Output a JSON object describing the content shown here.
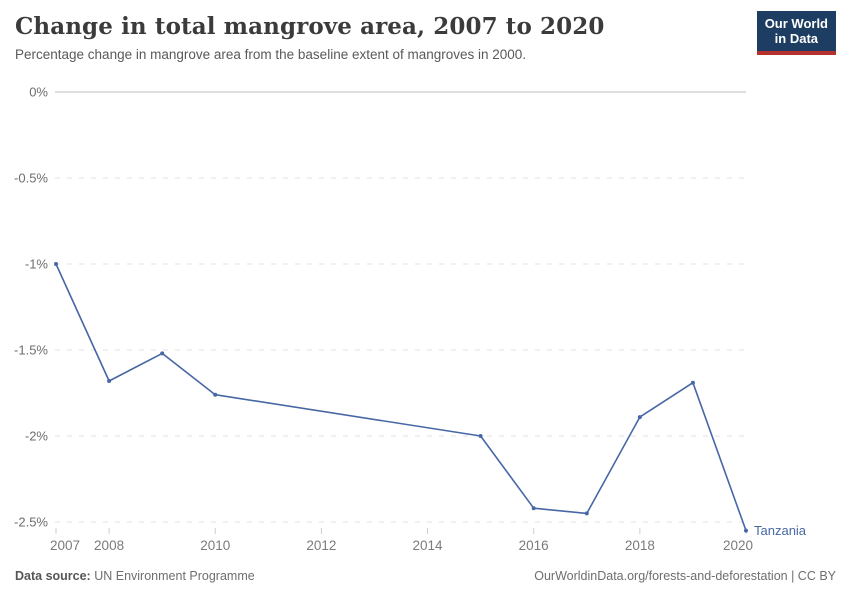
{
  "header": {
    "title": "Change in total mangrove area, 2007 to 2020",
    "subtitle": "Percentage change in mangrove area from the baseline extent of mangroves in 2000.",
    "logo": {
      "line1": "Our World",
      "line2": "in Data"
    }
  },
  "chart_data": {
    "type": "line",
    "title": "Change in total mangrove area, 2007 to 2020",
    "xlabel": "",
    "ylabel": "",
    "xlim": [
      2007,
      2020
    ],
    "ylim": [
      -2.5,
      0
    ],
    "grid": "horizontal-dashed",
    "legend_position": "end-of-line-label",
    "x_ticks": [
      2007,
      2008,
      2010,
      2012,
      2014,
      2016,
      2018,
      2020
    ],
    "y_ticks": [
      {
        "value": 0,
        "label": "0%"
      },
      {
        "value": -0.5,
        "label": "-0.5%"
      },
      {
        "value": -1,
        "label": "-1%"
      },
      {
        "value": -1.5,
        "label": "-1.5%"
      },
      {
        "value": -2,
        "label": "-2%"
      },
      {
        "value": -2.5,
        "label": "-2.5%"
      }
    ],
    "series": [
      {
        "name": "Tanzania",
        "color": "#4767a5",
        "points": [
          {
            "year": 2007,
            "value": -1.0
          },
          {
            "year": 2008,
            "value": -1.68
          },
          {
            "year": 2009,
            "value": -1.52
          },
          {
            "year": 2010,
            "value": -1.76
          },
          {
            "year": 2015,
            "value": -2.0
          },
          {
            "year": 2016,
            "value": -2.42
          },
          {
            "year": 2017,
            "value": -2.45
          },
          {
            "year": 2018,
            "value": -1.89
          },
          {
            "year": 2019,
            "value": -1.69
          },
          {
            "year": 2020,
            "value": -2.55
          }
        ]
      }
    ]
  },
  "footer": {
    "source_label": "Data source:",
    "source_value": "UN Environment Programme",
    "link": "OurWorldinData.org/forests-and-deforestation | CC BY"
  },
  "colors": {
    "line": "#4767a5",
    "logo_bg": "#1d3d63",
    "logo_stripe": "#b5312f",
    "zero_line": "#bdbdbd",
    "grid_dashed": "#e2e2e2",
    "axis_text": "#6d6d6d",
    "x_axis_text": "#7b7b7b",
    "tick_mark": "#cccccc"
  }
}
